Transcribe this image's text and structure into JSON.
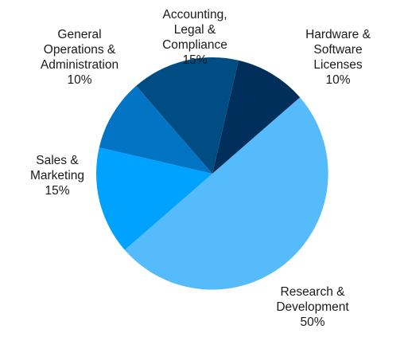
{
  "chart_data": {
    "type": "pie",
    "title": "",
    "start_angle_deg": 13,
    "direction": "clockwise",
    "slices": [
      {
        "label": "Hardware & Software Licenses",
        "label_lines": [
          "Hardware &",
          "Software",
          "Licenses"
        ],
        "value_text": "10%",
        "value": 10,
        "color": "#002F5C"
      },
      {
        "label": "Research & Development",
        "label_lines": [
          "Research &",
          "Development"
        ],
        "value_text": "50%",
        "value": 50,
        "color": "#55BBFB"
      },
      {
        "label": "Sales & Marketing",
        "label_lines": [
          "Sales &",
          "Marketing"
        ],
        "value_text": "15%",
        "value": 15,
        "color": "#00A2FF"
      },
      {
        "label": "General Operations & Administration",
        "label_lines": [
          "General",
          "Operations &",
          "Administration"
        ],
        "value_text": "10%",
        "value": 10,
        "color": "#0274C4"
      },
      {
        "label": "Accounting, Legal & Compliance",
        "label_lines": [
          "Accounting,",
          "Legal &",
          "Compliance"
        ],
        "value_text": "15%",
        "value": 15,
        "color": "#004D84"
      }
    ]
  }
}
